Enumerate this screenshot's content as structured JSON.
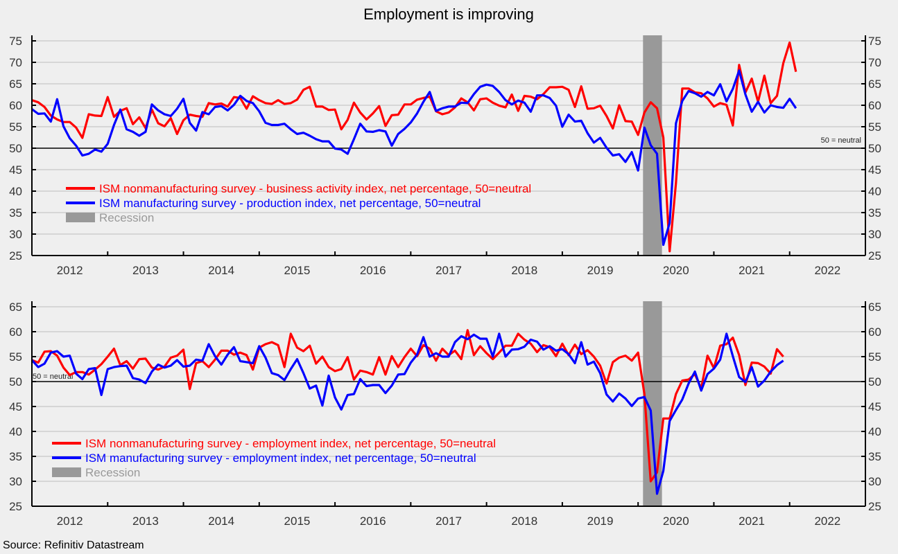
{
  "title": "Employment is improving",
  "source": "Source: Refinitiv Datastream",
  "colors": {
    "nonmanufacturing": "#ff0000",
    "manufacturing": "#0000ff",
    "recession": "#999999",
    "background": "#efefef",
    "grid": "#bdbdbd"
  },
  "chart_data": [
    {
      "type": "line",
      "title": "",
      "xlabel": "",
      "ylabel": "",
      "x_start": "2012-01",
      "x_frequency": "monthly",
      "x_ticks": [
        "2012",
        "2013",
        "2014",
        "2015",
        "2016",
        "2017",
        "2018",
        "2019",
        "2020",
        "2021",
        "2022"
      ],
      "xlim": [
        "2012-01",
        "2023-01"
      ],
      "ylim": [
        25,
        75
      ],
      "y_ticks": [
        "25",
        "30",
        "35",
        "40",
        "45",
        "50",
        "55",
        "60",
        "65",
        "70",
        "75"
      ],
      "grid": true,
      "reference_line": {
        "value": 50,
        "label": "50 = neutral"
      },
      "recession": {
        "start": "2020-02",
        "end": "2020-04"
      },
      "legend_position": "bottom-left",
      "legend": [
        {
          "label": "ISM nonmanufacturing survey - business activity index, net percentage, 50=neutral",
          "series": 0
        },
        {
          "label": "ISM manufacturing survey - production index, net percentage, 50=neutral",
          "series": 1
        },
        {
          "label": "Recession",
          "series": "recession"
        }
      ],
      "series": [
        {
          "name": "ISM nonmanufacturing survey - business activity index, net percentage, 50=neutral",
          "color": "#ff0000",
          "values": [
            61.2,
            60.7,
            59.6,
            57.6,
            56.7,
            56.1,
            56.1,
            54.8,
            52.4,
            57.9,
            57.6,
            57.5,
            61.9,
            57.3,
            58.7,
            59.3,
            55.6,
            57.2,
            54.7,
            59.0,
            55.8,
            55.1,
            57.0,
            53.3,
            56.5,
            57.8,
            57.5,
            57.3,
            60.5,
            60.2,
            60.4,
            59.7,
            61.9,
            61.7,
            59.2,
            62.1,
            61.2,
            60.5,
            60.3,
            61.2,
            60.3,
            60.5,
            61.3,
            63.6,
            64.3,
            59.7,
            59.7,
            58.9,
            59.0,
            54.4,
            56.6,
            60.6,
            58.3,
            56.7,
            58.1,
            59.8,
            55.2,
            57.7,
            57.8,
            60.2,
            60.2,
            61.3,
            61.7,
            62.0,
            58.6,
            57.9,
            58.3,
            59.5,
            61.6,
            60.7,
            58.8,
            61.4,
            61.6,
            60.6,
            59.9,
            59.5,
            62.5,
            58.7,
            62.2,
            62.0,
            61.4,
            62.6,
            64.2,
            64.2,
            64.3,
            63.6,
            59.6,
            64.4,
            59.2,
            59.3,
            59.9,
            57.5,
            54.6,
            60.0,
            56.3,
            56.2,
            53.1,
            58.3,
            60.7,
            59.3,
            52.5,
            26.0,
            41.9,
            63.9,
            63.9,
            63.0,
            62.8,
            61.6,
            59.7,
            60.5,
            60.1,
            55.3,
            69.4,
            63.0,
            66.2,
            60.8,
            66.9,
            60.5,
            62.2,
            69.8,
            74.6,
            67.8
          ]
        },
        {
          "name": "ISM manufacturing survey - production index, net percentage, 50=neutral",
          "color": "#0000ff",
          "values": [
            59.1,
            58.0,
            58.1,
            56.2,
            61.4,
            55.1,
            52.3,
            50.6,
            48.3,
            48.7,
            49.7,
            49.2,
            51.0,
            55.4,
            59.0,
            54.4,
            53.8,
            52.9,
            53.8,
            60.2,
            58.8,
            57.9,
            57.5,
            59.2,
            61.5,
            55.9,
            54.1,
            58.4,
            57.9,
            59.6,
            59.8,
            58.8,
            60.1,
            62.2,
            61.0,
            60.5,
            58.6,
            55.9,
            55.4,
            55.4,
            55.7,
            54.4,
            53.3,
            53.6,
            52.9,
            52.1,
            51.6,
            51.6,
            49.9,
            49.7,
            48.7,
            52.1,
            55.7,
            53.9,
            53.8,
            54.2,
            53.9,
            50.6,
            53.3,
            54.5,
            56.0,
            58.1,
            60.8,
            63.1,
            58.7,
            59.3,
            59.7,
            59.7,
            60.6,
            60.5,
            62.6,
            64.3,
            64.8,
            64.5,
            63.1,
            61.2,
            60.2,
            61.1,
            60.6,
            58.5,
            62.3,
            62.3,
            61.7,
            59.9,
            55.0,
            57.8,
            56.2,
            56.4,
            53.5,
            51.3,
            52.4,
            50.1,
            48.3,
            48.6,
            46.8,
            49.1,
            44.8,
            54.8,
            50.7,
            48.7,
            27.5,
            32.6,
            55.8,
            61.0,
            63.3,
            62.8,
            62.0,
            63.1,
            62.3,
            64.9,
            60.9,
            63.8,
            68.1,
            62.5,
            58.5,
            60.8,
            58.3,
            60.0,
            59.6,
            59.4,
            61.5,
            59.3
          ]
        }
      ]
    },
    {
      "type": "line",
      "title": "",
      "xlabel": "",
      "ylabel": "",
      "x_start": "2012-01",
      "x_frequency": "monthly",
      "x_ticks": [
        "2012",
        "2013",
        "2014",
        "2015",
        "2016",
        "2017",
        "2018",
        "2019",
        "2020",
        "2021",
        "2022"
      ],
      "xlim": [
        "2012-01",
        "2023-01"
      ],
      "ylim": [
        25,
        65
      ],
      "y_ticks": [
        "25",
        "30",
        "35",
        "40",
        "45",
        "50",
        "55",
        "60",
        "65"
      ],
      "grid": true,
      "reference_line": {
        "value": 50,
        "label": "50 = neutral"
      },
      "recession": {
        "start": "2020-02",
        "end": "2020-04"
      },
      "legend_position": "bottom-left",
      "legend": [
        {
          "label": "ISM nonmanufacturing survey - employment index, net percentage, 50=neutral",
          "series": 0
        },
        {
          "label": "ISM manufacturing survey - employment index, net percentage, 50=neutral",
          "series": 1
        },
        {
          "label": "Recession",
          "series": "recession"
        }
      ],
      "series": [
        {
          "name": "ISM nonmanufacturing survey - employment index, net percentage, 50=neutral",
          "color": "#ff0000",
          "values": [
            54.3,
            53.8,
            56.0,
            56.1,
            55.2,
            52.8,
            51.3,
            51.9,
            51.9,
            51.4,
            52.4,
            53.5,
            55.0,
            56.6,
            53.3,
            54.1,
            52.6,
            54.5,
            54.6,
            52.8,
            52.4,
            53.0,
            54.8,
            55.2,
            56.4,
            48.5,
            53.7,
            54.1,
            52.9,
            54.4,
            56.2,
            56.2,
            55.4,
            55.8,
            55.3,
            52.4,
            56.8,
            57.5,
            57.9,
            57.3,
            52.9,
            59.6,
            56.8,
            56.1,
            57.2,
            53.6,
            55.0,
            52.9,
            52.1,
            52.5,
            54.9,
            50.4,
            52.2,
            51.9,
            51.4,
            54.9,
            51.4,
            55.1,
            52.9,
            54.9,
            56.6,
            55.1,
            57.3,
            56.6,
            54.2,
            56.6,
            55.3,
            56.2,
            54.5,
            60.3,
            55.3,
            57.1,
            55.7,
            54.5,
            55.8,
            57.2,
            57.2,
            59.6,
            58.4,
            57.6,
            55.9,
            57.3,
            56.9,
            55.1,
            57.6,
            55.3,
            57.4,
            55.5,
            56.3,
            55.0,
            53.2,
            49.6,
            53.9,
            54.8,
            55.2,
            54.2,
            55.8,
            47.5,
            30.0,
            31.8,
            42.6,
            42.6,
            47.5,
            50.2,
            50.4,
            51.5,
            48.6,
            55.2,
            52.7,
            57.2,
            57.5,
            58.8,
            55.3,
            49.3,
            53.8,
            53.7,
            53.0,
            51.6,
            56.5,
            55.0
          ]
        },
        {
          "name": "ISM manufacturing survey - employment index, net percentage, 50=neutral",
          "color": "#0000ff",
          "values": [
            54.3,
            52.9,
            53.6,
            55.8,
            56.1,
            55.0,
            55.2,
            51.6,
            50.5,
            52.5,
            52.7,
            47.3,
            52.5,
            52.9,
            53.1,
            53.2,
            50.7,
            50.4,
            49.7,
            52.0,
            53.4,
            52.8,
            53.2,
            54.3,
            53.0,
            53.2,
            54.4,
            54.2,
            57.5,
            55.1,
            53.4,
            55.4,
            56.9,
            54.1,
            53.9,
            53.7,
            57.1,
            54.8,
            51.7,
            51.3,
            50.3,
            52.5,
            54.5,
            51.7,
            48.6,
            49.2,
            45.2,
            51.2,
            46.8,
            44.4,
            47.3,
            47.5,
            50.5,
            49.1,
            49.3,
            49.3,
            47.7,
            49.2,
            51.4,
            51.5,
            53.8,
            55.4,
            58.9,
            55.0,
            55.7,
            55.0,
            55.0,
            57.9,
            59.1,
            58.5,
            59.4,
            58.6,
            58.6,
            55.0,
            59.6,
            55.0,
            56.4,
            56.5,
            57.0,
            58.4,
            58.0,
            56.4,
            57.1,
            56.2,
            56.5,
            55.5,
            53.7,
            57.9,
            53.4,
            54.0,
            51.7,
            47.4,
            46.0,
            47.6,
            46.6,
            45.1,
            46.6,
            46.9,
            44.2,
            27.5,
            32.1,
            42.1,
            44.3,
            46.4,
            49.6,
            52.0,
            48.2,
            51.5,
            52.6,
            54.4,
            59.6,
            55.1,
            50.9,
            49.9,
            52.9,
            49.0,
            50.2,
            52.0,
            53.3,
            54.2
          ]
        }
      ]
    }
  ]
}
